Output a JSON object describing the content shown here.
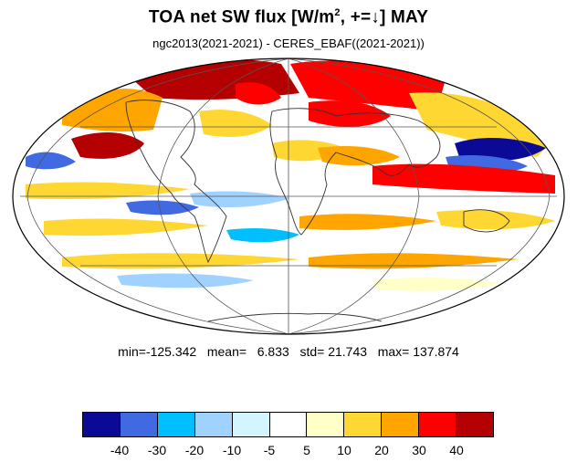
{
  "title": {
    "main": "TOA net SW flux [W/m",
    "sup": "2",
    "tail": ", +=",
    "arrow": "↓",
    "suffix": "]  MAY"
  },
  "subtitle": "ngc2013(2021-2021) - CERES_EBAF((2021-2021))",
  "stats": {
    "min_label": "min=",
    "min": "-125.342",
    "mean_label": "mean=",
    "mean": "6.833",
    "std_label": "std=",
    "std": "21.743",
    "max_label": "max=",
    "max": "137.874"
  },
  "map": {
    "projection": "mollweide",
    "grid_lines": true,
    "coastlines": true
  },
  "colorbar": {
    "colors": [
      "#0a0a96",
      "#4169e1",
      "#00bfff",
      "#a0d2ff",
      "#d2f5ff",
      "#ffffff",
      "#ffffc8",
      "#ffd732",
      "#ffa500",
      "#ff0000",
      "#b40000"
    ],
    "labels": [
      "-40",
      "-30",
      "-20",
      "-10",
      "-5",
      "5",
      "10",
      "20",
      "30",
      "40"
    ]
  }
}
